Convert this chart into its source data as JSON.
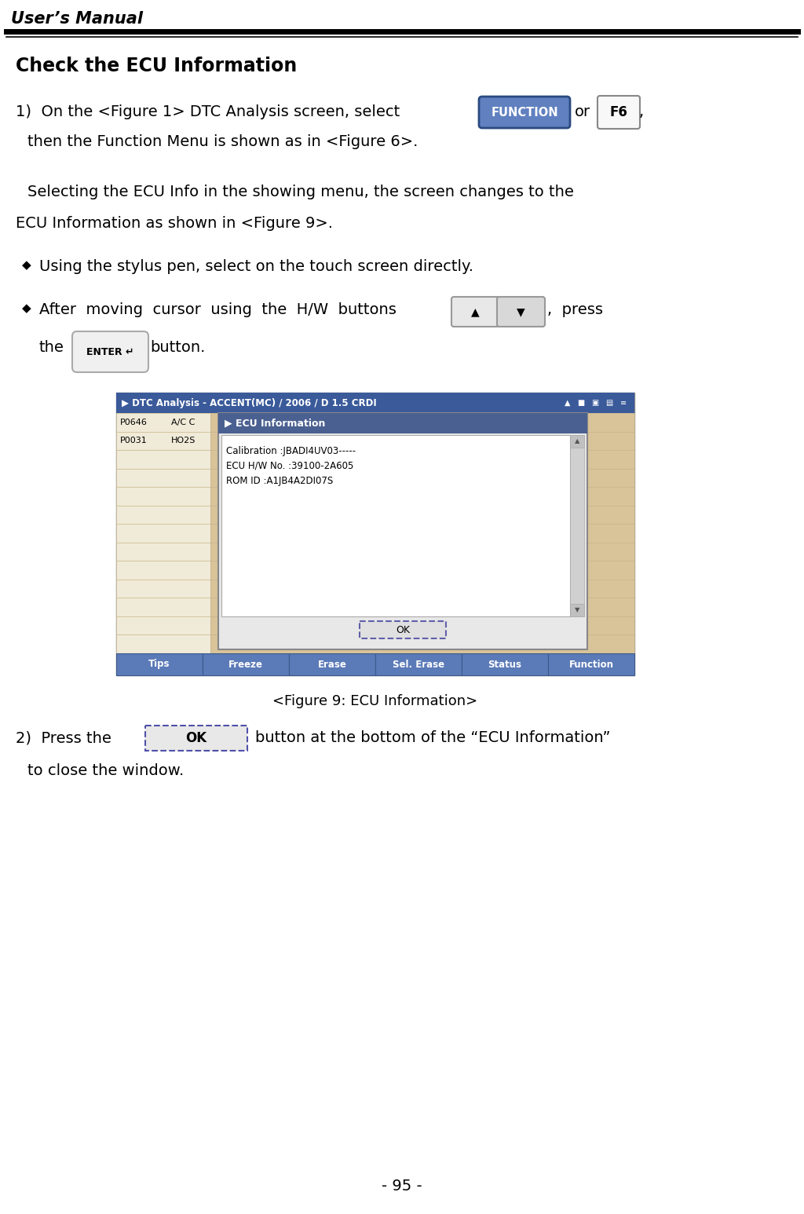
{
  "page_title": "User’s Manual",
  "page_number": "- 95 -",
  "section_title": "Check the ECU Information",
  "bg_color": "#ffffff",
  "figure_caption": "<Figure 9: ECU Information>",
  "screen_title": "▶ DTC Analysis - ACCENT(MC) / 2006 / D 1.5 CRDI",
  "screen_title_bg": "#3a5a9a",
  "dtc_rows": [
    {
      "code": "P0646",
      "desc": "A/C C"
    },
    {
      "code": "P0031",
      "desc": "HO2S"
    }
  ],
  "popup_title": "▶ ECU Information",
  "popup_title_bg": "#4a6090",
  "popup_info": [
    "Calibration :JBADI4UV03-----",
    "ECU H/W No. :39100-2A605",
    "ROM ID :A1JB4A2DI07S"
  ],
  "ok_button_text": "OK",
  "bottom_buttons": [
    "Tips",
    "Freeze",
    "Erase",
    "Sel. Erase",
    "Status",
    "Function"
  ],
  "table_bg": "#d9c49a",
  "screen_bg": "#d9c49a",
  "btn_color": "#5b7ab8",
  "header_line_color": "#000000",
  "text_color": "#000000",
  "func_btn_color": "#6080c0",
  "f6_bg": "#f0f0f0"
}
